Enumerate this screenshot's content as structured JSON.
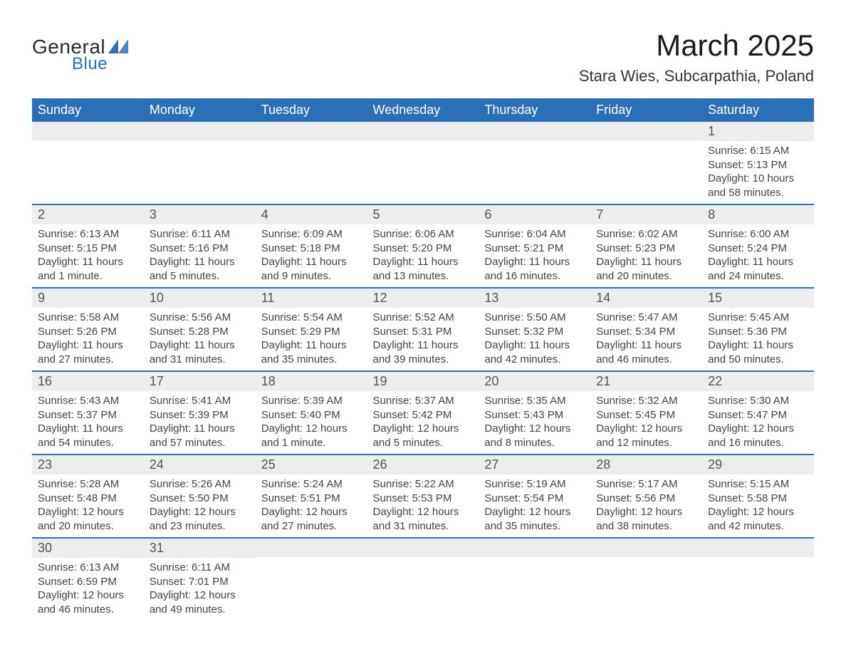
{
  "brand": {
    "name1": "General",
    "name2": "Blue",
    "accent": "#2a70b8"
  },
  "title": "March 2025",
  "location": "Stara Wies, Subcarpathia, Poland",
  "columns": [
    "Sunday",
    "Monday",
    "Tuesday",
    "Wednesday",
    "Thursday",
    "Friday",
    "Saturday"
  ],
  "colors": {
    "header_bg": "#2a70b8",
    "header_text": "#ffffff",
    "daynum_bg": "#ededed",
    "row_border": "#2a70b8",
    "body_text": "#444444",
    "background": "#ffffff"
  },
  "weeks": [
    [
      null,
      null,
      null,
      null,
      null,
      null,
      {
        "n": "1",
        "sunrise": "6:15 AM",
        "sunset": "5:13 PM",
        "daylight": "10 hours and 58 minutes."
      }
    ],
    [
      {
        "n": "2",
        "sunrise": "6:13 AM",
        "sunset": "5:15 PM",
        "daylight": "11 hours and 1 minute."
      },
      {
        "n": "3",
        "sunrise": "6:11 AM",
        "sunset": "5:16 PM",
        "daylight": "11 hours and 5 minutes."
      },
      {
        "n": "4",
        "sunrise": "6:09 AM",
        "sunset": "5:18 PM",
        "daylight": "11 hours and 9 minutes."
      },
      {
        "n": "5",
        "sunrise": "6:06 AM",
        "sunset": "5:20 PM",
        "daylight": "11 hours and 13 minutes."
      },
      {
        "n": "6",
        "sunrise": "6:04 AM",
        "sunset": "5:21 PM",
        "daylight": "11 hours and 16 minutes."
      },
      {
        "n": "7",
        "sunrise": "6:02 AM",
        "sunset": "5:23 PM",
        "daylight": "11 hours and 20 minutes."
      },
      {
        "n": "8",
        "sunrise": "6:00 AM",
        "sunset": "5:24 PM",
        "daylight": "11 hours and 24 minutes."
      }
    ],
    [
      {
        "n": "9",
        "sunrise": "5:58 AM",
        "sunset": "5:26 PM",
        "daylight": "11 hours and 27 minutes."
      },
      {
        "n": "10",
        "sunrise": "5:56 AM",
        "sunset": "5:28 PM",
        "daylight": "11 hours and 31 minutes."
      },
      {
        "n": "11",
        "sunrise": "5:54 AM",
        "sunset": "5:29 PM",
        "daylight": "11 hours and 35 minutes."
      },
      {
        "n": "12",
        "sunrise": "5:52 AM",
        "sunset": "5:31 PM",
        "daylight": "11 hours and 39 minutes."
      },
      {
        "n": "13",
        "sunrise": "5:50 AM",
        "sunset": "5:32 PM",
        "daylight": "11 hours and 42 minutes."
      },
      {
        "n": "14",
        "sunrise": "5:47 AM",
        "sunset": "5:34 PM",
        "daylight": "11 hours and 46 minutes."
      },
      {
        "n": "15",
        "sunrise": "5:45 AM",
        "sunset": "5:36 PM",
        "daylight": "11 hours and 50 minutes."
      }
    ],
    [
      {
        "n": "16",
        "sunrise": "5:43 AM",
        "sunset": "5:37 PM",
        "daylight": "11 hours and 54 minutes."
      },
      {
        "n": "17",
        "sunrise": "5:41 AM",
        "sunset": "5:39 PM",
        "daylight": "11 hours and 57 minutes."
      },
      {
        "n": "18",
        "sunrise": "5:39 AM",
        "sunset": "5:40 PM",
        "daylight": "12 hours and 1 minute."
      },
      {
        "n": "19",
        "sunrise": "5:37 AM",
        "sunset": "5:42 PM",
        "daylight": "12 hours and 5 minutes."
      },
      {
        "n": "20",
        "sunrise": "5:35 AM",
        "sunset": "5:43 PM",
        "daylight": "12 hours and 8 minutes."
      },
      {
        "n": "21",
        "sunrise": "5:32 AM",
        "sunset": "5:45 PM",
        "daylight": "12 hours and 12 minutes."
      },
      {
        "n": "22",
        "sunrise": "5:30 AM",
        "sunset": "5:47 PM",
        "daylight": "12 hours and 16 minutes."
      }
    ],
    [
      {
        "n": "23",
        "sunrise": "5:28 AM",
        "sunset": "5:48 PM",
        "daylight": "12 hours and 20 minutes."
      },
      {
        "n": "24",
        "sunrise": "5:26 AM",
        "sunset": "5:50 PM",
        "daylight": "12 hours and 23 minutes."
      },
      {
        "n": "25",
        "sunrise": "5:24 AM",
        "sunset": "5:51 PM",
        "daylight": "12 hours and 27 minutes."
      },
      {
        "n": "26",
        "sunrise": "5:22 AM",
        "sunset": "5:53 PM",
        "daylight": "12 hours and 31 minutes."
      },
      {
        "n": "27",
        "sunrise": "5:19 AM",
        "sunset": "5:54 PM",
        "daylight": "12 hours and 35 minutes."
      },
      {
        "n": "28",
        "sunrise": "5:17 AM",
        "sunset": "5:56 PM",
        "daylight": "12 hours and 38 minutes."
      },
      {
        "n": "29",
        "sunrise": "5:15 AM",
        "sunset": "5:58 PM",
        "daylight": "12 hours and 42 minutes."
      }
    ],
    [
      {
        "n": "30",
        "sunrise": "6:13 AM",
        "sunset": "6:59 PM",
        "daylight": "12 hours and 46 minutes."
      },
      {
        "n": "31",
        "sunrise": "6:11 AM",
        "sunset": "7:01 PM",
        "daylight": "12 hours and 49 minutes."
      },
      null,
      null,
      null,
      null,
      null
    ]
  ],
  "labels": {
    "sunrise": "Sunrise: ",
    "sunset": "Sunset: ",
    "daylight": "Daylight: "
  }
}
